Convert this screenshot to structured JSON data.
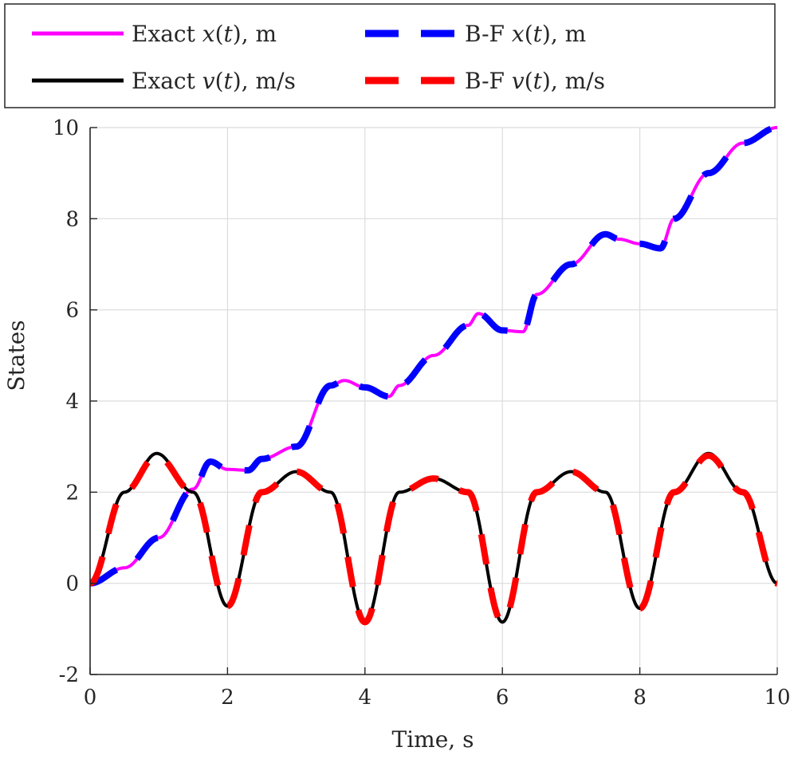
{
  "chart_data": {
    "type": "line",
    "title": "",
    "xlabel": "Time, s",
    "ylabel": "States",
    "xlim": [
      0,
      10
    ],
    "ylim": [
      -2,
      10
    ],
    "xticks": [
      0,
      2,
      4,
      6,
      8,
      10
    ],
    "yticks": [
      -2,
      0,
      2,
      4,
      6,
      8,
      10
    ],
    "xtick_labels": [
      "0",
      "2",
      "4",
      "6",
      "8",
      "10"
    ],
    "ytick_labels": [
      "-2",
      "0",
      "2",
      "4",
      "6",
      "8",
      "10"
    ],
    "grid": true,
    "legend_position": "top (above axes, outside)",
    "series": [
      {
        "name": "Exact x(t), m",
        "legend": {
          "prefix": "Exact ",
          "var": "x",
          "arg": "t",
          "unit": ", m"
        },
        "style": "solid",
        "color": "#ff00ff",
        "formula": "t - (1/(2*pi))*sin(2*pi*t) + (1/(2*pi))*sin(pi*t)",
        "x": [
          0,
          0.5,
          1,
          1.5,
          1.75,
          2,
          2.3,
          2.5,
          3,
          3.5,
          3.7,
          4,
          4.35,
          4.5,
          5,
          5.5,
          5.65,
          6,
          6.3,
          6.5,
          7,
          7.5,
          7.7,
          8,
          8.3,
          8.5,
          9,
          9.5,
          10
        ],
        "y": [
          0,
          0.34,
          1.0,
          2.07,
          2.67,
          2.5,
          2.48,
          2.73,
          3.0,
          4.34,
          4.45,
          4.3,
          4.1,
          4.34,
          5.0,
          5.66,
          5.92,
          5.55,
          5.52,
          6.34,
          7.0,
          7.66,
          7.55,
          7.45,
          7.35,
          8.0,
          9.0,
          9.66,
          10.0
        ]
      },
      {
        "name": "B-F x(t), m",
        "legend": {
          "prefix": "B-F ",
          "var": "x",
          "arg": "t",
          "unit": ", m"
        },
        "style": "dashed",
        "color": "#0000ff",
        "formula": "same as Exact x(t)"
      },
      {
        "name": "Exact v(t), m/s",
        "legend": {
          "prefix": "Exact ",
          "var": "v",
          "arg": "t",
          "unit": ", m/s"
        },
        "style": "solid",
        "color": "#000000",
        "formula": "1 - cos(2*pi*t) + 0.5*cos(pi*t)",
        "x": [
          0,
          0.5,
          0.97,
          1.5,
          2,
          2.5,
          3,
          3.5,
          4,
          4.5,
          5,
          5.5,
          6,
          6.5,
          7,
          7.5,
          8,
          8.5,
          9,
          9.5,
          10
        ],
        "y": [
          0,
          2.0,
          2.85,
          2.0,
          -0.5,
          2.0,
          2.45,
          2.0,
          -0.85,
          2.0,
          2.3,
          2.0,
          -0.85,
          2.0,
          2.45,
          2.0,
          -0.55,
          2.0,
          2.85,
          2.0,
          0
        ]
      },
      {
        "name": "B-F v(t), m/s",
        "legend": {
          "prefix": "B-F ",
          "var": "v",
          "arg": "t",
          "unit": ", m/s"
        },
        "style": "dashed",
        "color": "#ff0000",
        "formula": "0.5*(1 - cos(2*pi*t)) + 2*sin(pi*t)^2 * something ≈ exact v(t), time-shifted",
        "x": [
          0,
          0.5,
          0.97,
          1.5,
          2,
          2.5,
          3,
          3.5,
          4,
          4.5,
          5,
          5.5,
          6,
          6.5,
          7,
          7.5,
          8,
          8.5,
          9,
          9.5,
          10
        ],
        "y": [
          0,
          2.0,
          2.8,
          2.0,
          -0.5,
          2.0,
          2.45,
          2.0,
          -0.85,
          2.0,
          2.3,
          2.0,
          -0.85,
          2.0,
          2.45,
          2.0,
          -0.55,
          2.0,
          2.8,
          2.0,
          0
        ]
      }
    ]
  }
}
